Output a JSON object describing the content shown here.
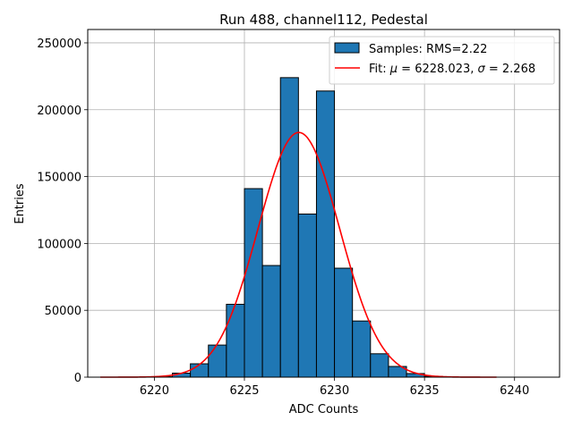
{
  "chart_data": {
    "type": "bar",
    "title": "Run 488, channel112, Pedestal",
    "xlabel": "ADC Counts",
    "ylabel": "Entries",
    "xlim": [
      6216.3,
      6242.5
    ],
    "ylim": [
      0,
      260000
    ],
    "grid": true,
    "legend_position": "top-right",
    "x_ticks": [
      6220,
      6225,
      6230,
      6235,
      6240
    ],
    "y_ticks": [
      0,
      50000,
      100000,
      150000,
      200000,
      250000
    ],
    "histogram": {
      "name": "Samples: RMS=2.22",
      "color": "#1f77b4",
      "bin_width": 1,
      "bin_lefts": [
        6220,
        6221,
        6222,
        6223,
        6224,
        6225,
        6226,
        6227,
        6228,
        6229,
        6230,
        6231,
        6232,
        6233,
        6234,
        6235
      ],
      "counts": [
        300,
        3000,
        10000,
        24000,
        54500,
        141000,
        83500,
        224000,
        122000,
        214000,
        81500,
        42000,
        17500,
        8000,
        2700,
        600
      ]
    },
    "fit": {
      "name_prefix": "Fit: ",
      "name_mu_symbol": "μ",
      "name_mid": " = 6228.023, ",
      "name_sigma_symbol": "σ",
      "name_suffix": " = 2.268",
      "color": "#ff0000",
      "mu": 6228.023,
      "sigma": 2.268,
      "amplitude": 183000,
      "x_range": [
        6217,
        6239
      ]
    }
  }
}
